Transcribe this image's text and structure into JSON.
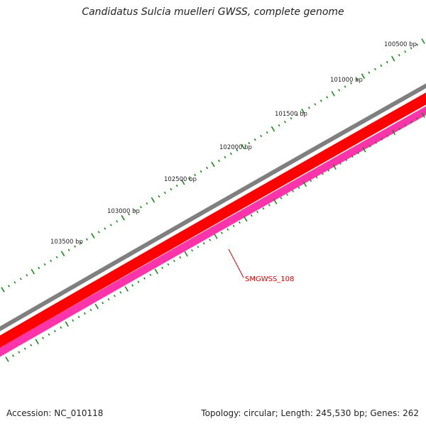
{
  "title": "Candidatus Sulcia muelleri GWSS, complete genome",
  "accession": "Accession: NC_010118",
  "summary": "Topology: circular; Length: 245,530 bp; Genes: 262",
  "ruler_labels": [
    "100500 bp",
    "101000 bp",
    "101500 bp",
    "102000 bp",
    "102500 bp",
    "103000 bp",
    "103500 bp"
  ],
  "gene_label": "SMGWSS_108",
  "colors": {
    "backbone": "#7f7f7f",
    "forward_strand": "#ff0000",
    "reverse_strand": "#ff33aa",
    "ticks": "#1a8a1a",
    "gene_label": "#e00000"
  }
}
